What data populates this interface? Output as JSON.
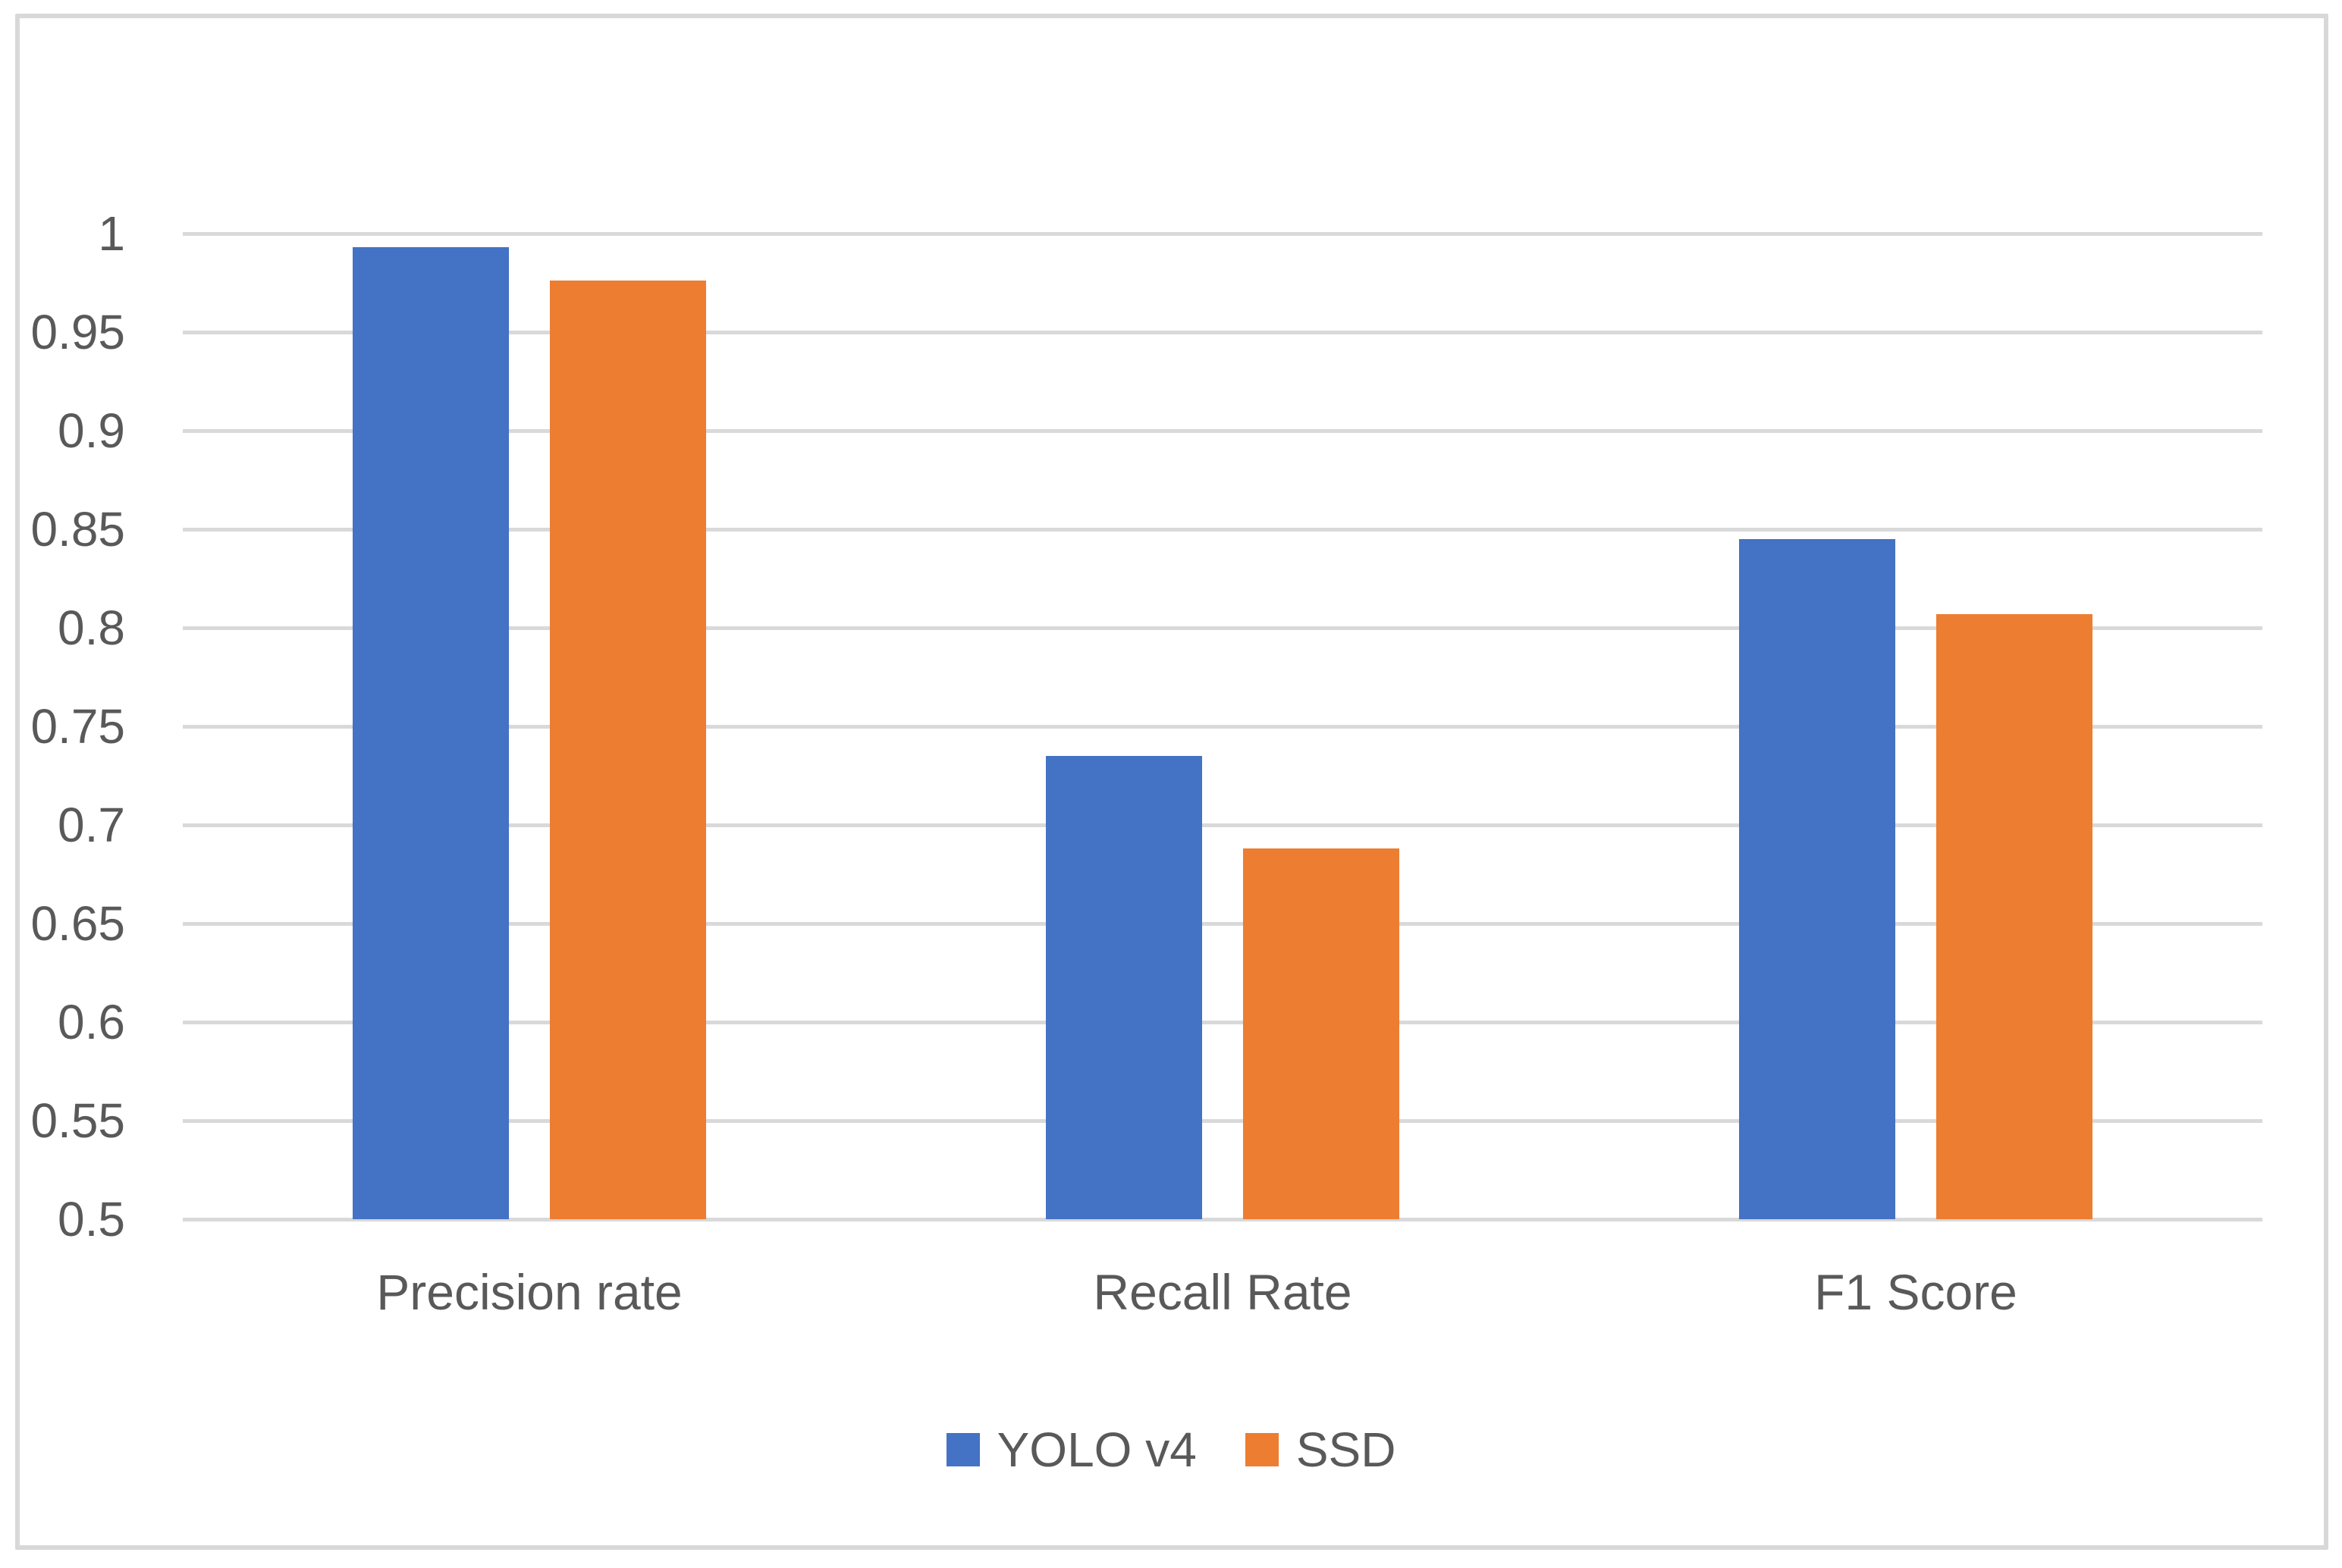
{
  "figure": {
    "background_color": "#FFFFFF",
    "border_color": "#D8D8D8",
    "text_color": "#595959",
    "gridline_color": "#D9D9D9"
  },
  "chart_data": {
    "type": "bar",
    "title": "",
    "xlabel": "",
    "ylabel": "",
    "categories": [
      "Precision rate",
      "Recall Rate",
      "F1 Score"
    ],
    "series": [
      {
        "name": "YOLO v4",
        "color": "#4472C4",
        "values": [
          0.993,
          0.735,
          0.845
        ]
      },
      {
        "name": "SSD",
        "color": "#ED7D31",
        "values": [
          0.976,
          0.688,
          0.807
        ]
      }
    ],
    "ylim": [
      0.5,
      1.0
    ],
    "ytick_step": 0.05,
    "yticks": [
      "1",
      "0.95",
      "0.9",
      "0.85",
      "0.8",
      "0.75",
      "0.7",
      "0.65",
      "0.6",
      "0.55",
      "0.5"
    ],
    "grid": true,
    "legend_position": "bottom-center"
  }
}
